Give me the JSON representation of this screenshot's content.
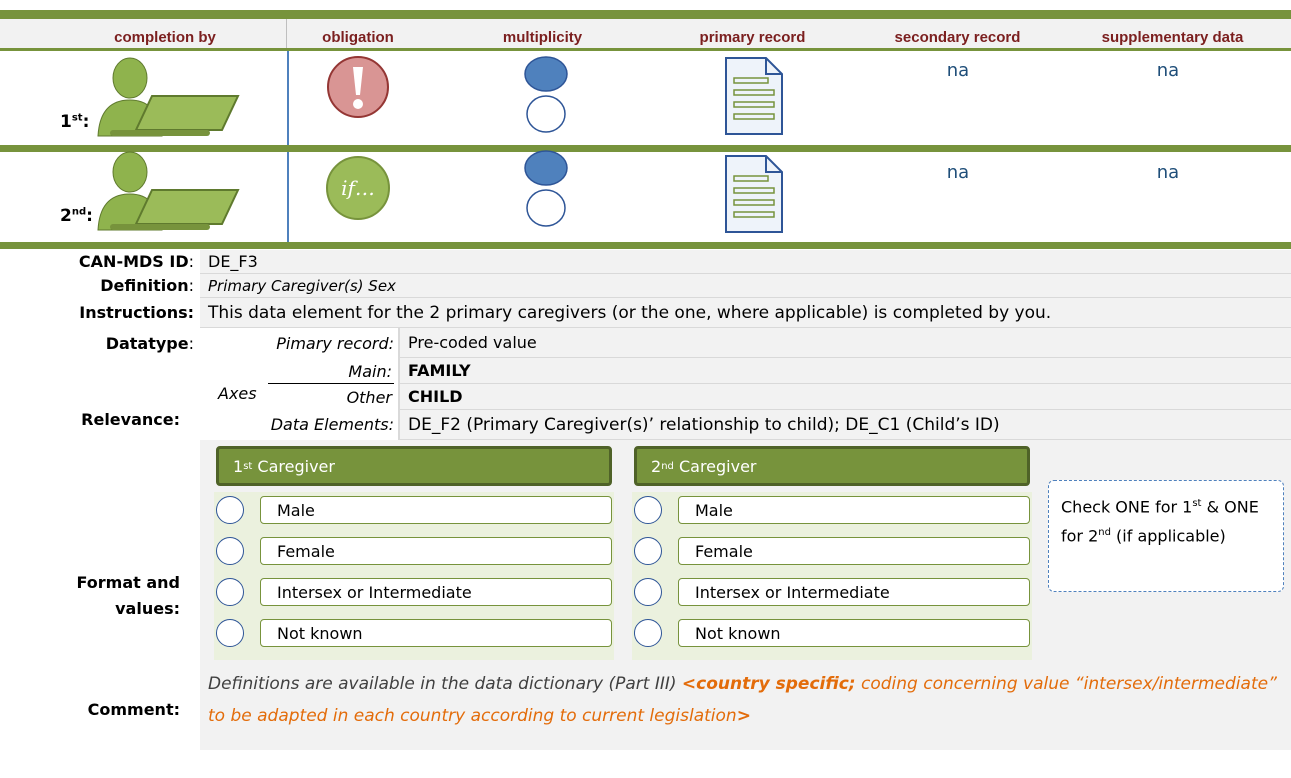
{
  "columns": [
    "completion by",
    "obligation",
    "multiplicity",
    "primary record",
    "secondary record",
    "supplementary data"
  ],
  "rows": [
    {
      "ordinal": "1",
      "ordinal_suffix": "st",
      "colon": ":",
      "secondary_record": "na",
      "supplementary_data": "na"
    },
    {
      "ordinal": "2",
      "ordinal_suffix": "nd",
      "colon": ":",
      "obligation_label": "if…",
      "secondary_record": "na",
      "supplementary_data": "na"
    }
  ],
  "table": {
    "colon": ":",
    "id_label": "CAN-MDS ID",
    "id_value": "DE_F3",
    "definition_label": "Definition",
    "definition_value": "Primary Caregiver(s) Sex",
    "instructions_label": "Instructions:",
    "instructions_value": "This data element for the 2 primary caregivers (or the one, where applicable) is completed by you.",
    "datatype_label": "Datatype",
    "datatype_sub": "Pimary record:",
    "datatype_value": "Pre-coded value",
    "relevance_label": "Relevance:",
    "axes_label": "Axes",
    "main_label": "Main:",
    "main_value": "FAMILY",
    "other_label": "Other",
    "other_value": "CHILD",
    "data_elements_label": "Data Elements:",
    "data_elements_value": "DE_F2 (Primary Caregiver(s)’ relationship to child); DE_C1 (Child’s ID)",
    "format_label": "Format and values:",
    "caregivers": [
      {
        "number": "1",
        "suffix": "st",
        "title": " Caregiver",
        "options": [
          "Male",
          "Female",
          "Intersex or Intermediate",
          "Not known"
        ]
      },
      {
        "number": "2",
        "suffix": "nd",
        "title": " Caregiver",
        "options": [
          "Male",
          "Female",
          "Intersex or Intermediate",
          "Not known"
        ]
      }
    ],
    "note": [
      "Check ONE for ",
      "1",
      "st",
      " & ONE for ",
      "2",
      "nd",
      " (if applicable)"
    ],
    "comment_label": "Comment:",
    "comment": [
      "Definitions are available in the data dictionary (Part III) ",
      "<country specific;",
      " coding concerning value “intersex/intermediate” to be adapted in each country according to current legislation",
      ">"
    ]
  }
}
